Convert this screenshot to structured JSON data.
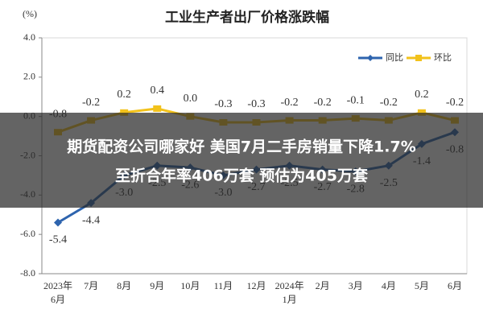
{
  "chart_data": {
    "type": "line",
    "title": "工业生产者出厂价格涨跌幅",
    "y_label": "(%)",
    "categories": [
      "2023年6月",
      "7月",
      "8月",
      "9月",
      "10月",
      "11月",
      "12月",
      "2024年1月",
      "2月",
      "3月",
      "4月",
      "5月",
      "6月"
    ],
    "series": [
      {
        "name": "同比",
        "color": "#2e64ae",
        "values": [
          -5.4,
          -4.4,
          -3.0,
          -2.5,
          -2.6,
          -3.0,
          -2.7,
          -2.5,
          -2.7,
          -2.8,
          -2.5,
          -1.4,
          -0.8
        ],
        "value_labels": [
          "-5.4",
          "-4.4",
          "-3.0",
          "-2.5",
          "-2.6",
          "-3.0",
          "-2.7",
          "-2.5",
          "-2.7",
          "-2.8",
          "-2.5",
          "-1.4",
          "-0.8"
        ]
      },
      {
        "name": "环比",
        "color": "#f2c21b",
        "values": [
          -0.8,
          -0.2,
          0.2,
          0.4,
          0.0,
          -0.3,
          -0.3,
          -0.2,
          -0.2,
          -0.1,
          -0.2,
          0.2,
          -0.2
        ],
        "value_labels": [
          "-0.8",
          "-0.2",
          "0.2",
          "0.4",
          "0.0",
          "-0.3",
          "-0.3",
          "-0.2",
          "-0.2",
          "-0.1",
          "-0.2",
          "0.2",
          "-0.2"
        ]
      }
    ],
    "ylim": [
      -8,
      4
    ],
    "yticks": [
      {
        "value": 4,
        "label": "4.0"
      },
      {
        "value": 2,
        "label": "2.0"
      },
      {
        "value": 0,
        "label": "0.0"
      },
      {
        "value": -2,
        "label": "-2.0"
      },
      {
        "value": -4,
        "label": "-4.0"
      },
      {
        "value": -6,
        "label": "-6.0"
      },
      {
        "value": -8,
        "label": "-8.0"
      }
    ],
    "legend": "top-right"
  },
  "banner": {
    "lines": [
      "期货配资公司哪家好 美国7月二手房销量下降1.7%",
      "至折合年率406万套 预估为405万套"
    ]
  }
}
